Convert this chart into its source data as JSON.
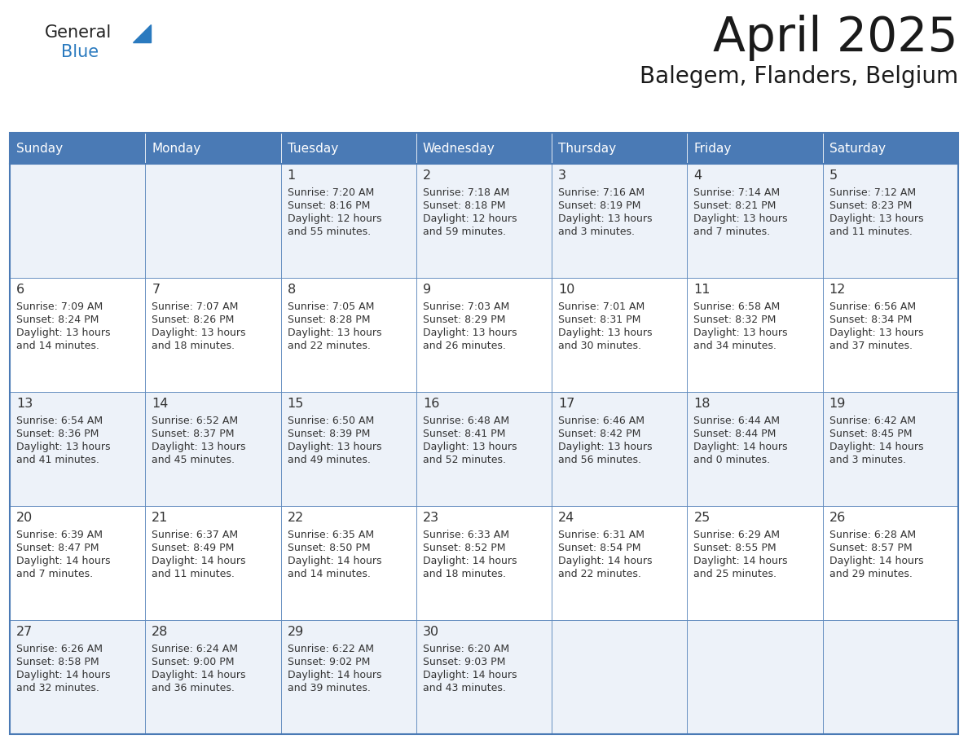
{
  "title": "April 2025",
  "subtitle": "Balegem, Flanders, Belgium",
  "header_color": "#4a7ab5",
  "header_text_color": "#ffffff",
  "cell_bg_even": "#edf2f9",
  "cell_bg_odd": "#ffffff",
  "border_color": "#4a7ab5",
  "text_color": "#333333",
  "day_names": [
    "Sunday",
    "Monday",
    "Tuesday",
    "Wednesday",
    "Thursday",
    "Friday",
    "Saturday"
  ],
  "logo_general_color": "#222222",
  "logo_blue_color": "#2a7abf",
  "logo_triangle_color": "#2a7abf",
  "calendar": [
    [
      {
        "day": "",
        "sunrise": "",
        "sunset": "",
        "daylight": ""
      },
      {
        "day": "",
        "sunrise": "",
        "sunset": "",
        "daylight": ""
      },
      {
        "day": "1",
        "sunrise": "7:20 AM",
        "sunset": "8:16 PM",
        "daylight": "12 hours and 55 minutes."
      },
      {
        "day": "2",
        "sunrise": "7:18 AM",
        "sunset": "8:18 PM",
        "daylight": "12 hours and 59 minutes."
      },
      {
        "day": "3",
        "sunrise": "7:16 AM",
        "sunset": "8:19 PM",
        "daylight": "13 hours and 3 minutes."
      },
      {
        "day": "4",
        "sunrise": "7:14 AM",
        "sunset": "8:21 PM",
        "daylight": "13 hours and 7 minutes."
      },
      {
        "day": "5",
        "sunrise": "7:12 AM",
        "sunset": "8:23 PM",
        "daylight": "13 hours and 11 minutes."
      }
    ],
    [
      {
        "day": "6",
        "sunrise": "7:09 AM",
        "sunset": "8:24 PM",
        "daylight": "13 hours and 14 minutes."
      },
      {
        "day": "7",
        "sunrise": "7:07 AM",
        "sunset": "8:26 PM",
        "daylight": "13 hours and 18 minutes."
      },
      {
        "day": "8",
        "sunrise": "7:05 AM",
        "sunset": "8:28 PM",
        "daylight": "13 hours and 22 minutes."
      },
      {
        "day": "9",
        "sunrise": "7:03 AM",
        "sunset": "8:29 PM",
        "daylight": "13 hours and 26 minutes."
      },
      {
        "day": "10",
        "sunrise": "7:01 AM",
        "sunset": "8:31 PM",
        "daylight": "13 hours and 30 minutes."
      },
      {
        "day": "11",
        "sunrise": "6:58 AM",
        "sunset": "8:32 PM",
        "daylight": "13 hours and 34 minutes."
      },
      {
        "day": "12",
        "sunrise": "6:56 AM",
        "sunset": "8:34 PM",
        "daylight": "13 hours and 37 minutes."
      }
    ],
    [
      {
        "day": "13",
        "sunrise": "6:54 AM",
        "sunset": "8:36 PM",
        "daylight": "13 hours and 41 minutes."
      },
      {
        "day": "14",
        "sunrise": "6:52 AM",
        "sunset": "8:37 PM",
        "daylight": "13 hours and 45 minutes."
      },
      {
        "day": "15",
        "sunrise": "6:50 AM",
        "sunset": "8:39 PM",
        "daylight": "13 hours and 49 minutes."
      },
      {
        "day": "16",
        "sunrise": "6:48 AM",
        "sunset": "8:41 PM",
        "daylight": "13 hours and 52 minutes."
      },
      {
        "day": "17",
        "sunrise": "6:46 AM",
        "sunset": "8:42 PM",
        "daylight": "13 hours and 56 minutes."
      },
      {
        "day": "18",
        "sunrise": "6:44 AM",
        "sunset": "8:44 PM",
        "daylight": "14 hours and 0 minutes."
      },
      {
        "day": "19",
        "sunrise": "6:42 AM",
        "sunset": "8:45 PM",
        "daylight": "14 hours and 3 minutes."
      }
    ],
    [
      {
        "day": "20",
        "sunrise": "6:39 AM",
        "sunset": "8:47 PM",
        "daylight": "14 hours and 7 minutes."
      },
      {
        "day": "21",
        "sunrise": "6:37 AM",
        "sunset": "8:49 PM",
        "daylight": "14 hours and 11 minutes."
      },
      {
        "day": "22",
        "sunrise": "6:35 AM",
        "sunset": "8:50 PM",
        "daylight": "14 hours and 14 minutes."
      },
      {
        "day": "23",
        "sunrise": "6:33 AM",
        "sunset": "8:52 PM",
        "daylight": "14 hours and 18 minutes."
      },
      {
        "day": "24",
        "sunrise": "6:31 AM",
        "sunset": "8:54 PM",
        "daylight": "14 hours and 22 minutes."
      },
      {
        "day": "25",
        "sunrise": "6:29 AM",
        "sunset": "8:55 PM",
        "daylight": "14 hours and 25 minutes."
      },
      {
        "day": "26",
        "sunrise": "6:28 AM",
        "sunset": "8:57 PM",
        "daylight": "14 hours and 29 minutes."
      }
    ],
    [
      {
        "day": "27",
        "sunrise": "6:26 AM",
        "sunset": "8:58 PM",
        "daylight": "14 hours and 32 minutes."
      },
      {
        "day": "28",
        "sunrise": "6:24 AM",
        "sunset": "9:00 PM",
        "daylight": "14 hours and 36 minutes."
      },
      {
        "day": "29",
        "sunrise": "6:22 AM",
        "sunset": "9:02 PM",
        "daylight": "14 hours and 39 minutes."
      },
      {
        "day": "30",
        "sunrise": "6:20 AM",
        "sunset": "9:03 PM",
        "daylight": "14 hours and 43 minutes."
      },
      {
        "day": "",
        "sunrise": "",
        "sunset": "",
        "daylight": ""
      },
      {
        "day": "",
        "sunrise": "",
        "sunset": "",
        "daylight": ""
      },
      {
        "day": "",
        "sunrise": "",
        "sunset": "",
        "daylight": ""
      }
    ]
  ]
}
